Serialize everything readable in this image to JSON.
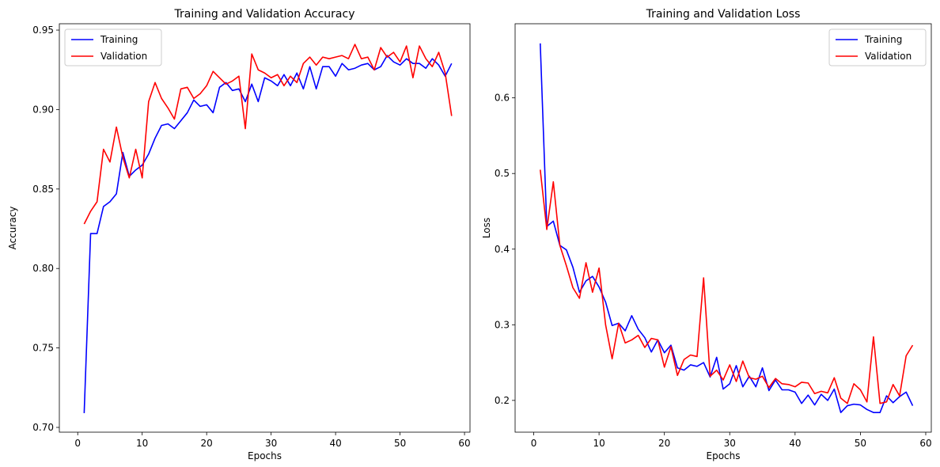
{
  "chart_data": [
    {
      "type": "line",
      "title": "Training and Validation Accuracy",
      "xlabel": "Epochs",
      "ylabel": "Accuracy",
      "xlim": [
        -2.85,
        60.85
      ],
      "ylim": [
        0.697,
        0.954
      ],
      "xticks": [
        0,
        10,
        20,
        30,
        40,
        50,
        60
      ],
      "yticks": [
        0.7,
        0.75,
        0.8,
        0.85,
        0.9,
        0.95
      ],
      "ytick_labels": [
        "0.70",
        "0.75",
        "0.80",
        "0.85",
        "0.90",
        "0.95"
      ],
      "legend_position": "top-left",
      "x": [
        1,
        2,
        3,
        4,
        5,
        6,
        7,
        8,
        9,
        10,
        11,
        12,
        13,
        14,
        15,
        16,
        17,
        18,
        19,
        20,
        21,
        22,
        23,
        24,
        25,
        26,
        27,
        28,
        29,
        30,
        31,
        32,
        33,
        34,
        35,
        36,
        37,
        38,
        39,
        40,
        41,
        42,
        43,
        44,
        45,
        46,
        47,
        48,
        49,
        50,
        51,
        52,
        53,
        54,
        55,
        56,
        57,
        58
      ],
      "series": [
        {
          "name": "Training",
          "color": "#0000ff",
          "values": [
            0.709,
            0.822,
            0.822,
            0.839,
            0.842,
            0.847,
            0.873,
            0.858,
            0.862,
            0.865,
            0.872,
            0.882,
            0.89,
            0.891,
            0.888,
            0.893,
            0.898,
            0.906,
            0.902,
            0.903,
            0.898,
            0.914,
            0.917,
            0.912,
            0.913,
            0.905,
            0.916,
            0.905,
            0.92,
            0.918,
            0.915,
            0.922,
            0.915,
            0.923,
            0.913,
            0.927,
            0.913,
            0.927,
            0.927,
            0.921,
            0.929,
            0.925,
            0.926,
            0.928,
            0.929,
            0.925,
            0.927,
            0.934,
            0.93,
            0.928,
            0.932,
            0.929,
            0.929,
            0.926,
            0.932,
            0.928,
            0.921,
            0.929
          ]
        },
        {
          "name": "Validation",
          "color": "#ff0000",
          "values": [
            0.828,
            0.836,
            0.842,
            0.875,
            0.867,
            0.889,
            0.87,
            0.857,
            0.875,
            0.857,
            0.905,
            0.917,
            0.907,
            0.901,
            0.894,
            0.913,
            0.914,
            0.907,
            0.91,
            0.915,
            0.924,
            0.92,
            0.916,
            0.918,
            0.921,
            0.888,
            0.935,
            0.925,
            0.923,
            0.92,
            0.922,
            0.915,
            0.921,
            0.917,
            0.929,
            0.933,
            0.928,
            0.933,
            0.932,
            0.933,
            0.934,
            0.932,
            0.941,
            0.932,
            0.933,
            0.925,
            0.939,
            0.933,
            0.936,
            0.93,
            0.94,
            0.92,
            0.94,
            0.932,
            0.927,
            0.936,
            0.923,
            0.896
          ]
        }
      ]
    },
    {
      "type": "line",
      "title": "Training and Validation Loss",
      "xlabel": "Epochs",
      "ylabel": "Loss",
      "xlim": [
        -2.85,
        60.85
      ],
      "ylim": [
        0.158,
        0.698
      ],
      "xticks": [
        0,
        10,
        20,
        30,
        40,
        50,
        60
      ],
      "yticks": [
        0.2,
        0.3,
        0.4,
        0.5,
        0.6
      ],
      "ytick_labels": [
        "0.2",
        "0.3",
        "0.4",
        "0.5",
        "0.6"
      ],
      "legend_position": "top-right",
      "x": [
        1,
        2,
        3,
        4,
        5,
        6,
        7,
        8,
        9,
        10,
        11,
        12,
        13,
        14,
        15,
        16,
        17,
        18,
        19,
        20,
        21,
        22,
        23,
        24,
        25,
        26,
        27,
        28,
        29,
        30,
        31,
        32,
        33,
        34,
        35,
        36,
        37,
        38,
        39,
        40,
        41,
        42,
        43,
        44,
        45,
        46,
        47,
        48,
        49,
        50,
        51,
        52,
        53,
        54,
        55,
        56,
        57,
        58
      ],
      "series": [
        {
          "name": "Training",
          "color": "#0000ff",
          "values": [
            0.672,
            0.43,
            0.437,
            0.405,
            0.399,
            0.376,
            0.343,
            0.358,
            0.364,
            0.35,
            0.33,
            0.299,
            0.302,
            0.292,
            0.312,
            0.294,
            0.283,
            0.264,
            0.28,
            0.263,
            0.273,
            0.243,
            0.24,
            0.247,
            0.245,
            0.25,
            0.231,
            0.257,
            0.215,
            0.222,
            0.246,
            0.218,
            0.232,
            0.218,
            0.243,
            0.213,
            0.227,
            0.214,
            0.214,
            0.211,
            0.196,
            0.207,
            0.194,
            0.208,
            0.2,
            0.215,
            0.184,
            0.193,
            0.195,
            0.194,
            0.188,
            0.184,
            0.184,
            0.206,
            0.197,
            0.205,
            0.211,
            0.193
          ]
        },
        {
          "name": "Validation",
          "color": "#ff0000",
          "values": [
            0.505,
            0.426,
            0.489,
            0.405,
            0.378,
            0.349,
            0.335,
            0.382,
            0.343,
            0.375,
            0.3,
            0.255,
            0.302,
            0.276,
            0.28,
            0.286,
            0.27,
            0.282,
            0.28,
            0.244,
            0.271,
            0.233,
            0.254,
            0.26,
            0.258,
            0.362,
            0.232,
            0.24,
            0.227,
            0.247,
            0.225,
            0.252,
            0.23,
            0.228,
            0.232,
            0.217,
            0.229,
            0.222,
            0.221,
            0.218,
            0.224,
            0.223,
            0.209,
            0.212,
            0.21,
            0.23,
            0.203,
            0.196,
            0.222,
            0.214,
            0.198,
            0.284,
            0.196,
            0.198,
            0.221,
            0.206,
            0.259,
            0.273
          ]
        }
      ]
    }
  ]
}
